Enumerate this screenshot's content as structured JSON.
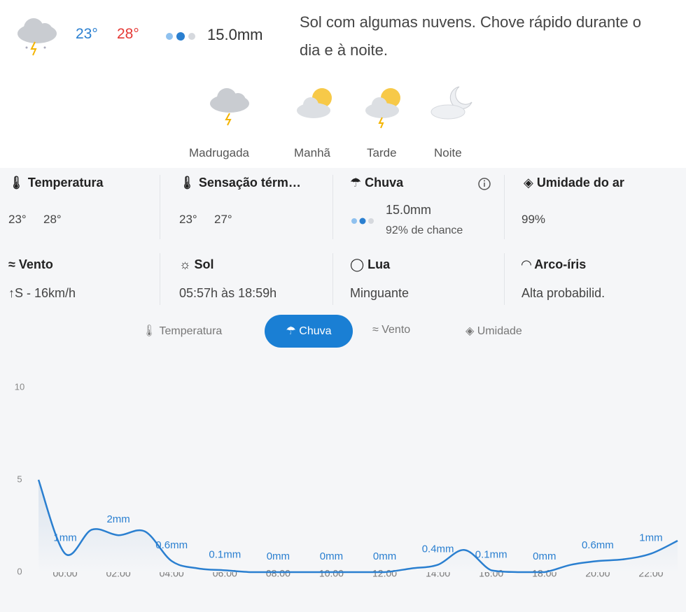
{
  "summary": {
    "temp_min": "23°",
    "temp_max": "28°",
    "rain": "15.0mm",
    "description": "Sol com algumas nuvens. Chove rápido durante o dia e à noite."
  },
  "periods": [
    "Madrugada",
    "Manhã",
    "Tarde",
    "Noite"
  ],
  "details": [
    {
      "label": "Temperatura",
      "min": "23°",
      "max": "28°"
    },
    {
      "label": "Sensação térm…",
      "min": "23°",
      "max": "27°"
    },
    {
      "label": "Chuva",
      "amount": "15.0mm",
      "chance": "92% de chance"
    },
    {
      "label": "Umidade do ar",
      "value": "99%"
    },
    {
      "label": "Vento",
      "value": "↑S - 16km/h"
    },
    {
      "label": "Sol",
      "value": "05:57h às 18:59h"
    },
    {
      "label": "Lua",
      "value": "Minguante"
    },
    {
      "label": "Arco-íris",
      "value": "Alta probabilid."
    }
  ],
  "tabs": [
    "Temperatura",
    "Chuva",
    "Vento",
    "Umidade"
  ],
  "chart": {
    "type": "line",
    "color": "#2a7fd0",
    "categories": [
      null,
      "00:00",
      null,
      "02:00",
      null,
      "04:00",
      null,
      "06:00",
      null,
      "08:00",
      null,
      "10:00",
      null,
      "12:00",
      null,
      "14:00",
      null,
      "16:00",
      null,
      "18:00",
      null,
      "20:00",
      null,
      "22:00",
      null
    ],
    "values": [
      5,
      1,
      2.3,
      2,
      2.2,
      0.6,
      0.2,
      0.1,
      0,
      0,
      0,
      0,
      0,
      0,
      0.2,
      0.4,
      1.2,
      0.1,
      0,
      0,
      0.4,
      0.6,
      0.7,
      1,
      1.7
    ],
    "value_labels": [
      null,
      "1mm",
      null,
      "2mm",
      null,
      "0.6mm",
      null,
      "0.1mm",
      null,
      "0mm",
      null,
      "0mm",
      null,
      "0mm",
      null,
      "0.4mm",
      null,
      "0.1mm",
      null,
      "0mm",
      null,
      "0.6mm",
      null,
      "1mm",
      null
    ],
    "ylim": [
      0,
      10
    ],
    "yticks": [
      0,
      5,
      10
    ]
  }
}
